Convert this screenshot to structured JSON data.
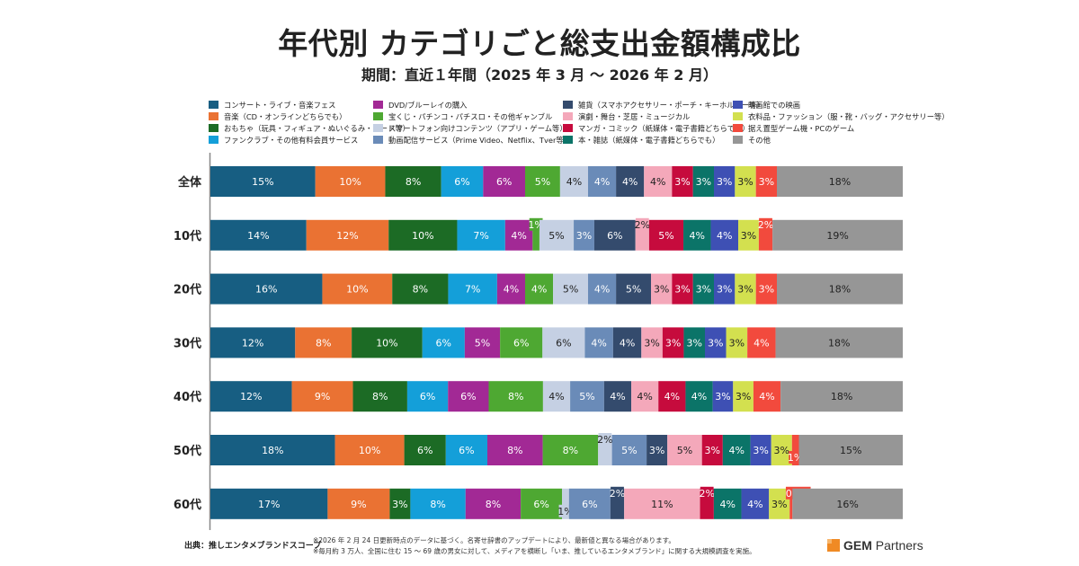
{
  "header": {
    "title": "年代別 カテゴリごと総支出金額構成比",
    "subtitle": "期間：直近１年間（2025 年 3 月 ～ 2026 年 2 月）"
  },
  "chart_data": {
    "type": "bar",
    "orientation": "horizontal-stacked-100",
    "title": "年代別 カテゴリごと総支出金額構成比",
    "subtitle": "期間：直近１年間（2025 年 3 月 ～ 2026 年 2 月）",
    "xlabel": "",
    "ylabel": "",
    "xlim": [
      0,
      100
    ],
    "grid": false,
    "legend_position": "top",
    "categories": [
      "全体",
      "10代",
      "20代",
      "30代",
      "40代",
      "50代",
      "60代"
    ],
    "series": [
      {
        "name": "コンサート・ライブ・音楽フェス",
        "color": "#175e82",
        "text": "light",
        "values": [
          15,
          14,
          16,
          12,
          12,
          18,
          17
        ]
      },
      {
        "name": "音楽（CD・オンラインどちらでも）",
        "color": "#ea7233",
        "text": "light",
        "values": [
          10,
          12,
          10,
          8,
          9,
          10,
          9
        ]
      },
      {
        "name": "おもちゃ（玩具・フィギュア・ぬいぐるみ・カード等）",
        "color": "#1c6b25",
        "text": "light",
        "values": [
          8,
          10,
          8,
          10,
          8,
          6,
          3
        ]
      },
      {
        "name": "ファンクラブ・その他有料会員サービス",
        "color": "#149fd9",
        "text": "light",
        "values": [
          6,
          7,
          7,
          6,
          6,
          6,
          8
        ]
      },
      {
        "name": "DVD/ブルーレイの購入",
        "color": "#a22995",
        "text": "light",
        "values": [
          6,
          4,
          4,
          5,
          6,
          8,
          8
        ]
      },
      {
        "name": "宝くじ・パチンコ・パチスロ・その他ギャンブル",
        "color": "#4ea832",
        "text": "light",
        "values": [
          5,
          1,
          4,
          6,
          8,
          8,
          6
        ]
      },
      {
        "name": "スマートフォン向けコンテンツ（アプリ・ゲーム等）",
        "color": "#c5d0e3",
        "text": "dark",
        "values": [
          4,
          5,
          5,
          6,
          4,
          2,
          1
        ]
      },
      {
        "name": "動画配信サービス（Prime Video、Netflix、Tver等）",
        "color": "#6a8bb8",
        "text": "light",
        "values": [
          4,
          3,
          4,
          4,
          5,
          5,
          6
        ]
      },
      {
        "name": "雑貨（スマホアクセサリー・ポーチ・キーホルダー等）",
        "color": "#344b6d",
        "text": "light",
        "values": [
          4,
          6,
          5,
          4,
          4,
          3,
          2
        ]
      },
      {
        "name": "演劇・舞台・芝居・ミュージカル",
        "color": "#f4a8ba",
        "text": "dark",
        "values": [
          4,
          2,
          3,
          3,
          4,
          5,
          11
        ]
      },
      {
        "name": "マンガ・コミック（紙媒体・電子書籍どちらでも）",
        "color": "#c60b3d",
        "text": "light",
        "values": [
          3,
          5,
          3,
          3,
          4,
          3,
          2
        ]
      },
      {
        "name": "本・雑誌（紙媒体・電子書籍どちらでも）",
        "color": "#0b7468",
        "text": "light",
        "values": [
          3,
          4,
          3,
          3,
          4,
          4,
          4
        ]
      },
      {
        "name": "映画館での映画",
        "color": "#3e50b4",
        "text": "light",
        "values": [
          3,
          4,
          3,
          3,
          3,
          3,
          4
        ]
      },
      {
        "name": "衣料品・ファッション（服・靴・バッグ・アクセサリー等）",
        "color": "#d3e04f",
        "text": "dark",
        "values": [
          3,
          3,
          3,
          3,
          3,
          3,
          3
        ]
      },
      {
        "name": "据え置型ゲーム機・PCのゲーム",
        "color": "#f24a3d",
        "text": "light",
        "values": [
          3,
          2,
          3,
          4,
          4,
          1,
          0.4
        ]
      },
      {
        "name": "その他",
        "color": "#969696",
        "text": "dark",
        "values": [
          18,
          19,
          18,
          18,
          18,
          15,
          16
        ]
      }
    ],
    "value_labels": [
      [
        "15%",
        "10%",
        "8%",
        "6%",
        "6%",
        "5%",
        "4%",
        "4%",
        "4%",
        "4%",
        "3%",
        "3%",
        "3%",
        "3%",
        "3%",
        "18%"
      ],
      [
        "14%",
        "12%",
        "10%",
        "7%",
        "4%",
        "1%",
        "5%",
        "3%",
        "6%",
        "2%",
        "5%",
        "4%",
        "4%",
        "3%",
        "2%",
        "19%"
      ],
      [
        "16%",
        "10%",
        "8%",
        "7%",
        "4%",
        "4%",
        "5%",
        "4%",
        "5%",
        "3%",
        "3%",
        "3%",
        "3%",
        "3%",
        "3%",
        "18%"
      ],
      [
        "12%",
        "8%",
        "10%",
        "6%",
        "5%",
        "6%",
        "6%",
        "4%",
        "4%",
        "3%",
        "3%",
        "3%",
        "3%",
        "3%",
        "4%",
        "18%"
      ],
      [
        "12%",
        "9%",
        "8%",
        "6%",
        "6%",
        "8%",
        "4%",
        "5%",
        "4%",
        "4%",
        "4%",
        "4%",
        "3%",
        "3%",
        "4%",
        "18%"
      ],
      [
        "18%",
        "10%",
        "6%",
        "6%",
        "8%",
        "8%",
        "2%",
        "5%",
        "3%",
        "5%",
        "3%",
        "4%",
        "3%",
        "3%",
        "1%",
        "15%"
      ],
      [
        "17%",
        "9%",
        "3%",
        "8%",
        "8%",
        "6%",
        "1%",
        "6%",
        "2%",
        "11%",
        "2%",
        "4%",
        "4%",
        "3%",
        "0.4%",
        "16%"
      ]
    ]
  },
  "footer": {
    "source_label": "出典：推しエンタメブランドスコープ",
    "notes": [
      "※2026 年 2 月 24 日更新時点のデータに基づく。名寄せ辞書のアップデートにより、最新値と異なる場合があります。",
      "※毎月約 3 万人、全国に住む 15 ～ 69 歳の男女に対して、メディアを横断し「いま、推しているエンタメブランド」に関する大規模調査を実施。"
    ],
    "brand_bold": "GEM",
    "brand_rest": " Partners"
  }
}
